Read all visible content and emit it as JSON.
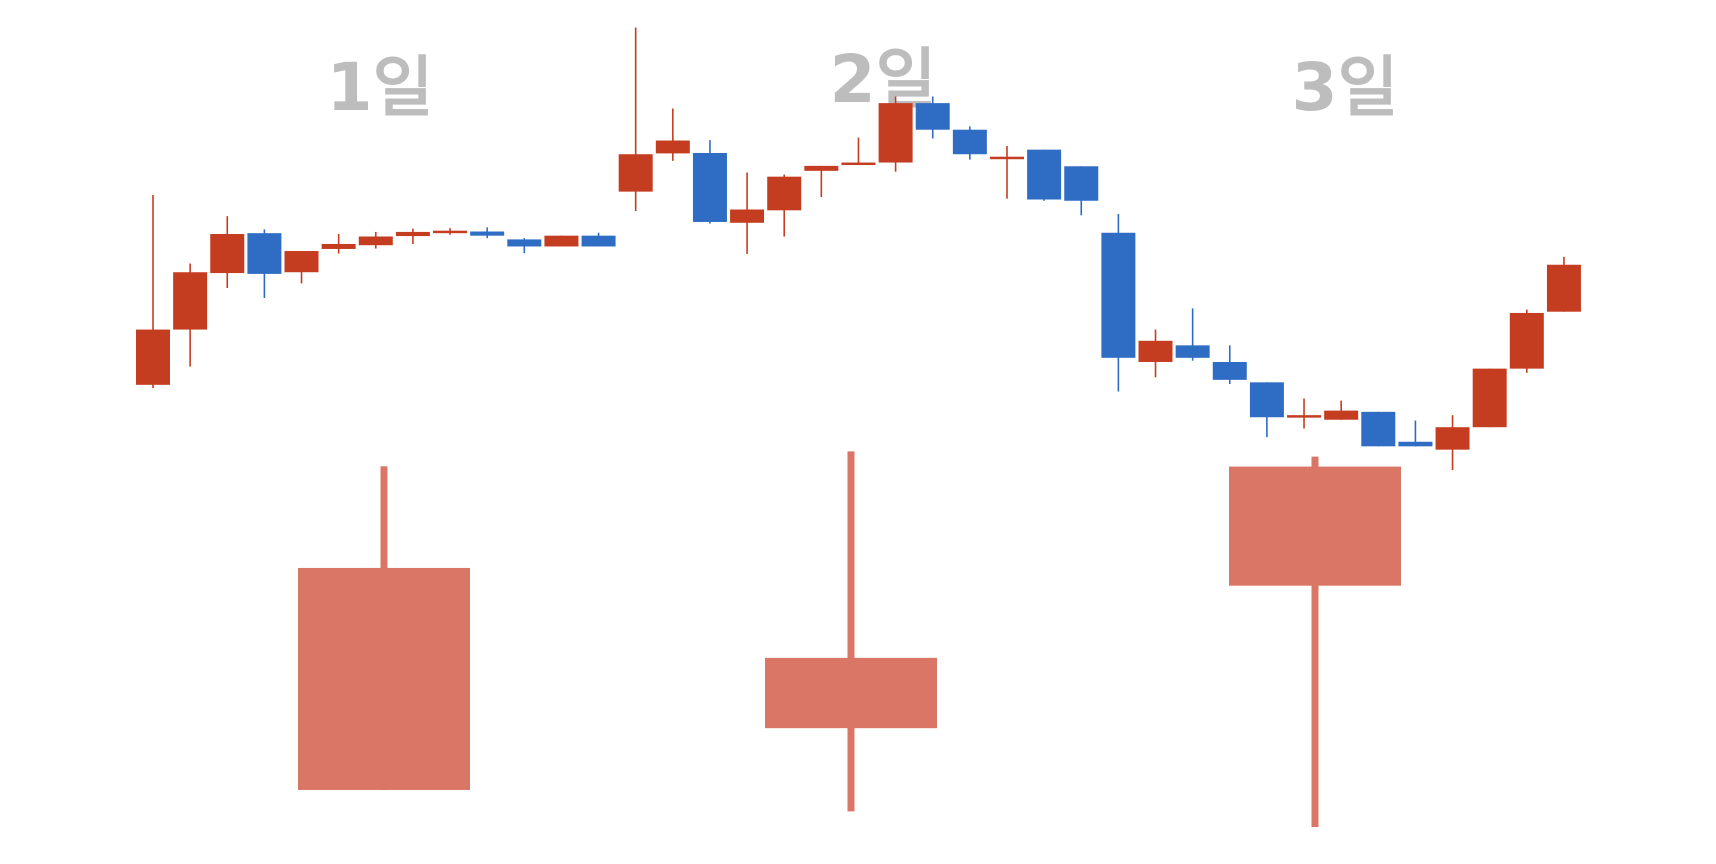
{
  "colors": {
    "up": "#c53d21",
    "down": "#2f6cc4",
    "summary_up": "#d97666",
    "summary_down": "#72b5bf"
  },
  "chart_data": [
    {
      "type": "candlestick",
      "title": "",
      "xlabel": "",
      "ylabel": "",
      "grid": false,
      "ylim": [
        0,
        100
      ],
      "period_labels": [
        "1일",
        "2일",
        "3일"
      ],
      "candles": [
        {
          "open": 14,
          "close": 27.3,
          "high": 59.7,
          "low": 13.2
        },
        {
          "open": 27.3,
          "close": 41.1,
          "high": 43.2,
          "low": 18.4
        },
        {
          "open": 40.9,
          "close": 50.3,
          "high": 54.6,
          "low": 37.3
        },
        {
          "open": 50.5,
          "close": 40.7,
          "high": 51.4,
          "low": 34.9
        },
        {
          "open": 41.1,
          "close": 46.2,
          "high": 46.2,
          "low": 38.4
        },
        {
          "open": 46.7,
          "close": 47.9,
          "high": 50.3,
          "low": 45.6
        },
        {
          "open": 47.6,
          "close": 49.7,
          "high": 50.8,
          "low": 46.8
        },
        {
          "open": 49.8,
          "close": 50.8,
          "high": 51.6,
          "low": 47.9
        },
        {
          "open": 50.6,
          "close": 51.1,
          "high": 51.7,
          "low": 50.1
        },
        {
          "open": 50.9,
          "close": 49.9,
          "high": 51.9,
          "low": 49.3
        },
        {
          "open": 49,
          "close": 47.3,
          "high": 49.3,
          "low": 45.7
        },
        {
          "open": 47.3,
          "close": 49.9,
          "high": 49.9,
          "low": 47.3
        },
        {
          "open": 49.9,
          "close": 47.3,
          "high": 50.6,
          "low": 47.3
        },
        {
          "open": 60.5,
          "close": 69.5,
          "high": 100,
          "low": 55.8
        },
        {
          "open": 69.7,
          "close": 72.8,
          "high": 80.5,
          "low": 67.9
        },
        {
          "open": 69.8,
          "close": 53.2,
          "high": 72.9,
          "low": 52.8
        },
        {
          "open": 53,
          "close": 56.2,
          "high": 65.1,
          "low": 45.5
        },
        {
          "open": 56,
          "close": 64.1,
          "high": 64.6,
          "low": 49.7
        },
        {
          "open": 65.5,
          "close": 66.7,
          "high": 66.7,
          "low": 59.2
        },
        {
          "open": 67,
          "close": 67.5,
          "high": 73.5,
          "low": 67
        },
        {
          "open": 67.5,
          "close": 81.8,
          "high": 83.4,
          "low": 65.3
        },
        {
          "open": 81.8,
          "close": 75.4,
          "high": 83.4,
          "low": 73.3
        },
        {
          "open": 75.4,
          "close": 69.5,
          "high": 76.2,
          "low": 68.2
        },
        {
          "open": 68.9,
          "close": 68.9,
          "high": 71.5,
          "low": 58.8
        },
        {
          "open": 70.6,
          "close": 58.6,
          "high": 70.6,
          "low": 58.3
        },
        {
          "open": 66.6,
          "close": 58.3,
          "high": 66.6,
          "low": 54.8
        },
        {
          "open": 50.6,
          "close": 20.5,
          "high": 55.1,
          "low": 12.4
        },
        {
          "open": 19.5,
          "close": 24.6,
          "high": 27.3,
          "low": 15.8
        },
        {
          "open": 23.5,
          "close": 20.5,
          "high": 32.4,
          "low": 19.8
        },
        {
          "open": 19.5,
          "close": 15.2,
          "high": 23.5,
          "low": 14.2
        },
        {
          "open": 14.6,
          "close": 6.2,
          "high": 14.6,
          "low": 1.4
        },
        {
          "open": 6.7,
          "close": 6.7,
          "high": 10.7,
          "low": 3.5
        },
        {
          "open": 5.6,
          "close": 7.8,
          "high": 10.2,
          "low": 5.6
        },
        {
          "open": 7.5,
          "close": -0.8,
          "high": 7.5,
          "low": -0.8
        },
        {
          "open": 0.3,
          "close": -0.8,
          "high": 5.4,
          "low": -0.8
        },
        {
          "open": -1.6,
          "close": 3.8,
          "high": 6.7,
          "low": -6.5
        },
        {
          "open": 3.8,
          "close": 17.9,
          "high": 17.9,
          "low": 3.8
        },
        {
          "open": 17.9,
          "close": 31.3,
          "high": 32.1,
          "low": 16.9
        },
        {
          "open": 31.6,
          "close": 42.9,
          "high": 44.8,
          "low": 31.6
        }
      ]
    },
    {
      "type": "candlestick",
      "title": "",
      "xlabel": "",
      "ylabel": "",
      "grid": false,
      "ylim": [
        0,
        100
      ],
      "categories": [
        "1일",
        "2일",
        "3일"
      ],
      "candles": [
        {
          "open": 6.5,
          "close": 66.5,
          "high": 94,
          "low": 6.5
        },
        {
          "open": 23.2,
          "close": 42.2,
          "high": 98,
          "low": 0.7
        },
        {
          "open": 61.7,
          "close": 93.9,
          "high": 96.6,
          "low": -3.5
        }
      ]
    }
  ]
}
